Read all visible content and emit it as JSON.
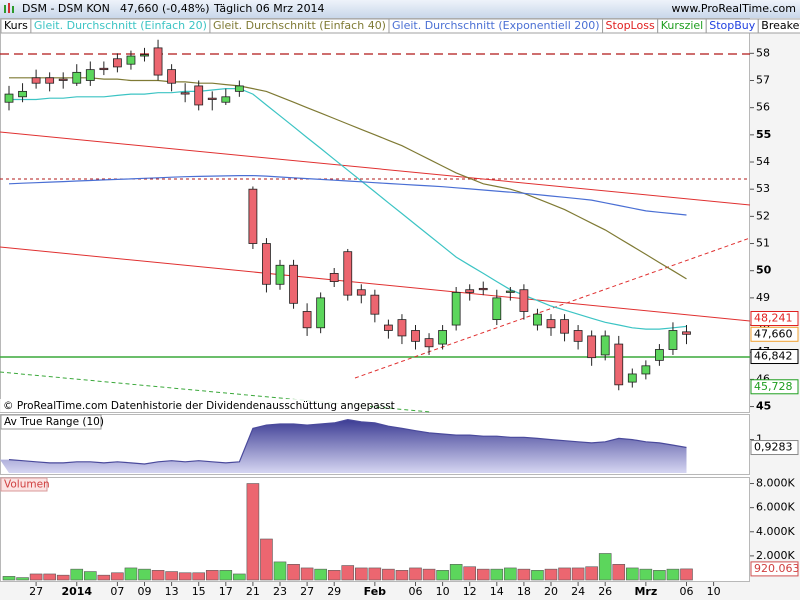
{
  "header": {
    "symbol": "DSM - DSM KON",
    "quote": "47,660 (-0,48%)",
    "period": "Täglich 06 Mrz 2014",
    "site": "www.ProRealTime.com"
  },
  "footnote": "© ProRealTime.com  Datenhistorie der Dividendenausschüttung angepasst",
  "chart_data": [
    {
      "type": "candlestick",
      "price_name": "Kurs",
      "up_color": "#5cd65c",
      "down_color": "#ec6670",
      "ylim": [
        44.8,
        59.3
      ],
      "yticks": [
        58,
        57,
        56,
        55,
        54,
        53,
        52,
        51,
        50,
        49,
        48,
        47,
        46,
        45
      ],
      "open": [
        56.2,
        56.4,
        57.1,
        57.1,
        57.05,
        56.9,
        57.0,
        57.45,
        57.8,
        57.6,
        57.9,
        58.2,
        57.4,
        56.55,
        56.8,
        56.35,
        56.2,
        56.6,
        53.0,
        51.0,
        49.5,
        50.2,
        48.5,
        47.9,
        49.9,
        50.7,
        49.3,
        49.1,
        48.0,
        48.2,
        47.8,
        47.5,
        47.3,
        48.0,
        49.3,
        49.35,
        48.2,
        49.2,
        49.3,
        48.0,
        48.2,
        48.2,
        47.8,
        47.6,
        46.9,
        47.3,
        45.9,
        46.2,
        46.7,
        47.1,
        47.75,
        null,
        null
      ],
      "high": [
        56.8,
        56.9,
        57.4,
        57.3,
        57.3,
        57.6,
        57.7,
        57.7,
        58.0,
        58.1,
        58.2,
        58.5,
        57.6,
        56.9,
        57.0,
        56.6,
        56.7,
        57.0,
        53.1,
        51.2,
        50.4,
        50.4,
        48.8,
        49.2,
        50.1,
        50.8,
        49.5,
        49.3,
        48.2,
        48.4,
        48.0,
        47.7,
        48.0,
        49.4,
        49.5,
        49.6,
        49.3,
        49.4,
        49.5,
        48.6,
        48.4,
        48.4,
        48.0,
        47.8,
        47.8,
        47.6,
        46.4,
        46.7,
        47.3,
        48.1,
        48.0,
        null,
        null
      ],
      "low": [
        55.9,
        56.2,
        56.7,
        56.6,
        56.7,
        56.8,
        56.8,
        57.2,
        57.3,
        57.4,
        57.7,
        57.0,
        56.6,
        56.2,
        55.9,
        55.9,
        56.1,
        56.4,
        50.8,
        49.2,
        49.3,
        48.6,
        47.6,
        47.7,
        49.4,
        48.9,
        48.8,
        48.1,
        47.5,
        47.3,
        47.1,
        46.9,
        47.1,
        47.8,
        48.9,
        49.1,
        48.0,
        48.9,
        48.2,
        47.8,
        47.6,
        47.4,
        47.1,
        46.5,
        46.7,
        45.6,
        45.7,
        46.0,
        46.5,
        46.9,
        47.3,
        null,
        null
      ],
      "close": [
        56.5,
        56.6,
        56.9,
        56.9,
        57.0,
        57.3,
        57.4,
        57.4,
        57.5,
        57.9,
        57.95,
        57.2,
        56.9,
        56.5,
        56.1,
        56.3,
        56.4,
        56.8,
        51.0,
        49.5,
        50.2,
        48.8,
        47.9,
        49.0,
        49.6,
        49.1,
        49.1,
        48.4,
        47.8,
        47.6,
        47.4,
        47.2,
        47.8,
        49.2,
        49.2,
        49.3,
        49.0,
        49.25,
        48.5,
        48.4,
        47.9,
        47.7,
        47.4,
        46.8,
        47.6,
        45.8,
        46.2,
        46.5,
        47.1,
        47.8,
        47.66,
        null,
        null
      ],
      "series": [
        {
          "name": "Gleit. Durchschnitt (Einfach 20)",
          "color": "#3cc4c4",
          "values": [
            56.3,
            56.3,
            56.3,
            56.35,
            56.35,
            56.4,
            56.4,
            56.4,
            56.45,
            56.5,
            56.5,
            56.55,
            56.55,
            56.6,
            56.6,
            56.65,
            56.7,
            56.7,
            56.5,
            56.1,
            55.7,
            55.3,
            54.9,
            54.5,
            54.1,
            53.7,
            53.3,
            52.9,
            52.5,
            52.1,
            51.7,
            51.3,
            50.9,
            50.5,
            50.2,
            49.9,
            49.6,
            49.3,
            49.1,
            48.9,
            48.7,
            48.55,
            48.4,
            48.25,
            48.1,
            48.0,
            47.9,
            47.85,
            47.85,
            47.9,
            47.95,
            null,
            null
          ]
        },
        {
          "name": "Gleit. Durchschnitt (Einfach 40)",
          "color": "#7f7a34",
          "values": [
            57.1,
            57.1,
            57.1,
            57.1,
            57.1,
            57.1,
            57.1,
            57.05,
            57.05,
            57.0,
            57.0,
            57.0,
            56.95,
            56.95,
            56.9,
            56.9,
            56.85,
            56.8,
            56.7,
            56.6,
            56.4,
            56.2,
            56.0,
            55.8,
            55.6,
            55.4,
            55.2,
            55.0,
            54.8,
            54.6,
            54.35,
            54.1,
            53.85,
            53.6,
            53.4,
            53.2,
            53.1,
            53.0,
            52.85,
            52.65,
            52.45,
            52.25,
            52.0,
            51.75,
            51.5,
            51.2,
            50.9,
            50.6,
            50.3,
            50.0,
            49.7,
            null,
            null
          ]
        },
        {
          "name": "Gleit. Durchschnitt (Exponentiell 200)",
          "color": "#4a6fd4",
          "values": [
            53.2,
            53.22,
            53.24,
            53.26,
            53.28,
            53.3,
            53.32,
            53.34,
            53.36,
            53.38,
            53.4,
            53.42,
            53.44,
            53.46,
            53.47,
            53.48,
            53.49,
            53.5,
            53.5,
            53.48,
            53.45,
            53.42,
            53.39,
            53.36,
            53.33,
            53.3,
            53.27,
            53.24,
            53.21,
            53.18,
            53.15,
            53.12,
            53.09,
            53.05,
            53.01,
            52.97,
            52.93,
            52.89,
            52.85,
            52.8,
            52.75,
            52.7,
            52.65,
            52.6,
            52.5,
            52.4,
            52.3,
            52.2,
            52.15,
            52.1,
            52.05,
            null,
            null
          ]
        }
      ],
      "markers": [
        {
          "name": "StopLoss",
          "color": "#e02020"
        },
        {
          "name": "Kursziel",
          "color": "#1f9e1f"
        },
        {
          "name": "StopBuy",
          "color": "#2040e0"
        },
        {
          "name": "Breakeven",
          "color": "#000000"
        }
      ],
      "price_labels": [
        {
          "value": 48.241,
          "label": "48,241",
          "color": "#e02020"
        },
        {
          "value": 47.66,
          "label": "47,660",
          "color": "#000000"
        },
        {
          "value": 46.842,
          "label": "46,842",
          "color": "#000000"
        },
        {
          "value": 45.728,
          "label": "45,728",
          "color": "#1f9e1f"
        }
      ]
    },
    {
      "type": "area",
      "title": "Av True Range (10)",
      "color": "#4a4a9c",
      "ylim": [
        0.69,
        1.23
      ],
      "yticks": [
        1
      ],
      "values": [
        0.82,
        0.81,
        0.8,
        0.79,
        0.79,
        0.8,
        0.8,
        0.79,
        0.8,
        0.79,
        0.78,
        0.8,
        0.81,
        0.8,
        0.81,
        0.8,
        0.79,
        0.8,
        1.1,
        1.13,
        1.14,
        1.14,
        1.13,
        1.14,
        1.15,
        1.18,
        1.16,
        1.15,
        1.12,
        1.1,
        1.08,
        1.06,
        1.05,
        1.04,
        1.04,
        1.03,
        1.03,
        1.02,
        1.02,
        1.01,
        1.0,
        0.99,
        0.98,
        0.97,
        0.98,
        1.01,
        1.0,
        0.98,
        0.97,
        0.95,
        0.9283,
        null,
        null
      ],
      "last_label": {
        "value": 0.9283,
        "label": "0,9283"
      }
    },
    {
      "type": "bar",
      "title": "Volumen",
      "categories": [
        null,
        null,
        "27",
        null,
        null,
        "2014",
        null,
        null,
        "07",
        null,
        "09",
        null,
        "13",
        null,
        "15",
        null,
        "17",
        null,
        "21",
        null,
        "23",
        null,
        "27",
        null,
        "29",
        null,
        null,
        "Feb",
        null,
        null,
        "06",
        null,
        "10",
        null,
        "12",
        null,
        "14",
        null,
        "18",
        null,
        "20",
        null,
        "24",
        null,
        "26",
        null,
        null,
        "Mrz",
        null,
        null,
        "06",
        null,
        "10"
      ],
      "ylim": [
        0,
        8500000
      ],
      "yticks": [
        {
          "value": 8000000,
          "label": "8.000K"
        },
        {
          "value": 6000000,
          "label": "6.000K"
        },
        {
          "value": 4000000,
          "label": "4.000K"
        },
        {
          "value": 2000000,
          "label": "2.000K"
        }
      ],
      "values": [
        300000,
        200000,
        500000,
        500000,
        400000,
        900000,
        700000,
        400000,
        600000,
        1000000,
        900000,
        800000,
        700000,
        600000,
        600000,
        800000,
        800000,
        500000,
        8000000,
        3400000,
        1500000,
        1300000,
        1000000,
        900000,
        800000,
        1200000,
        1000000,
        1000000,
        900000,
        800000,
        1000000,
        900000,
        800000,
        1300000,
        1100000,
        900000,
        900000,
        1000000,
        900000,
        800000,
        900000,
        1000000,
        1000000,
        1100000,
        2200000,
        1300000,
        1000000,
        900000,
        800000,
        900000,
        920063,
        null,
        null
      ],
      "last_label": {
        "value": 920063,
        "label": "920.063"
      }
    }
  ]
}
